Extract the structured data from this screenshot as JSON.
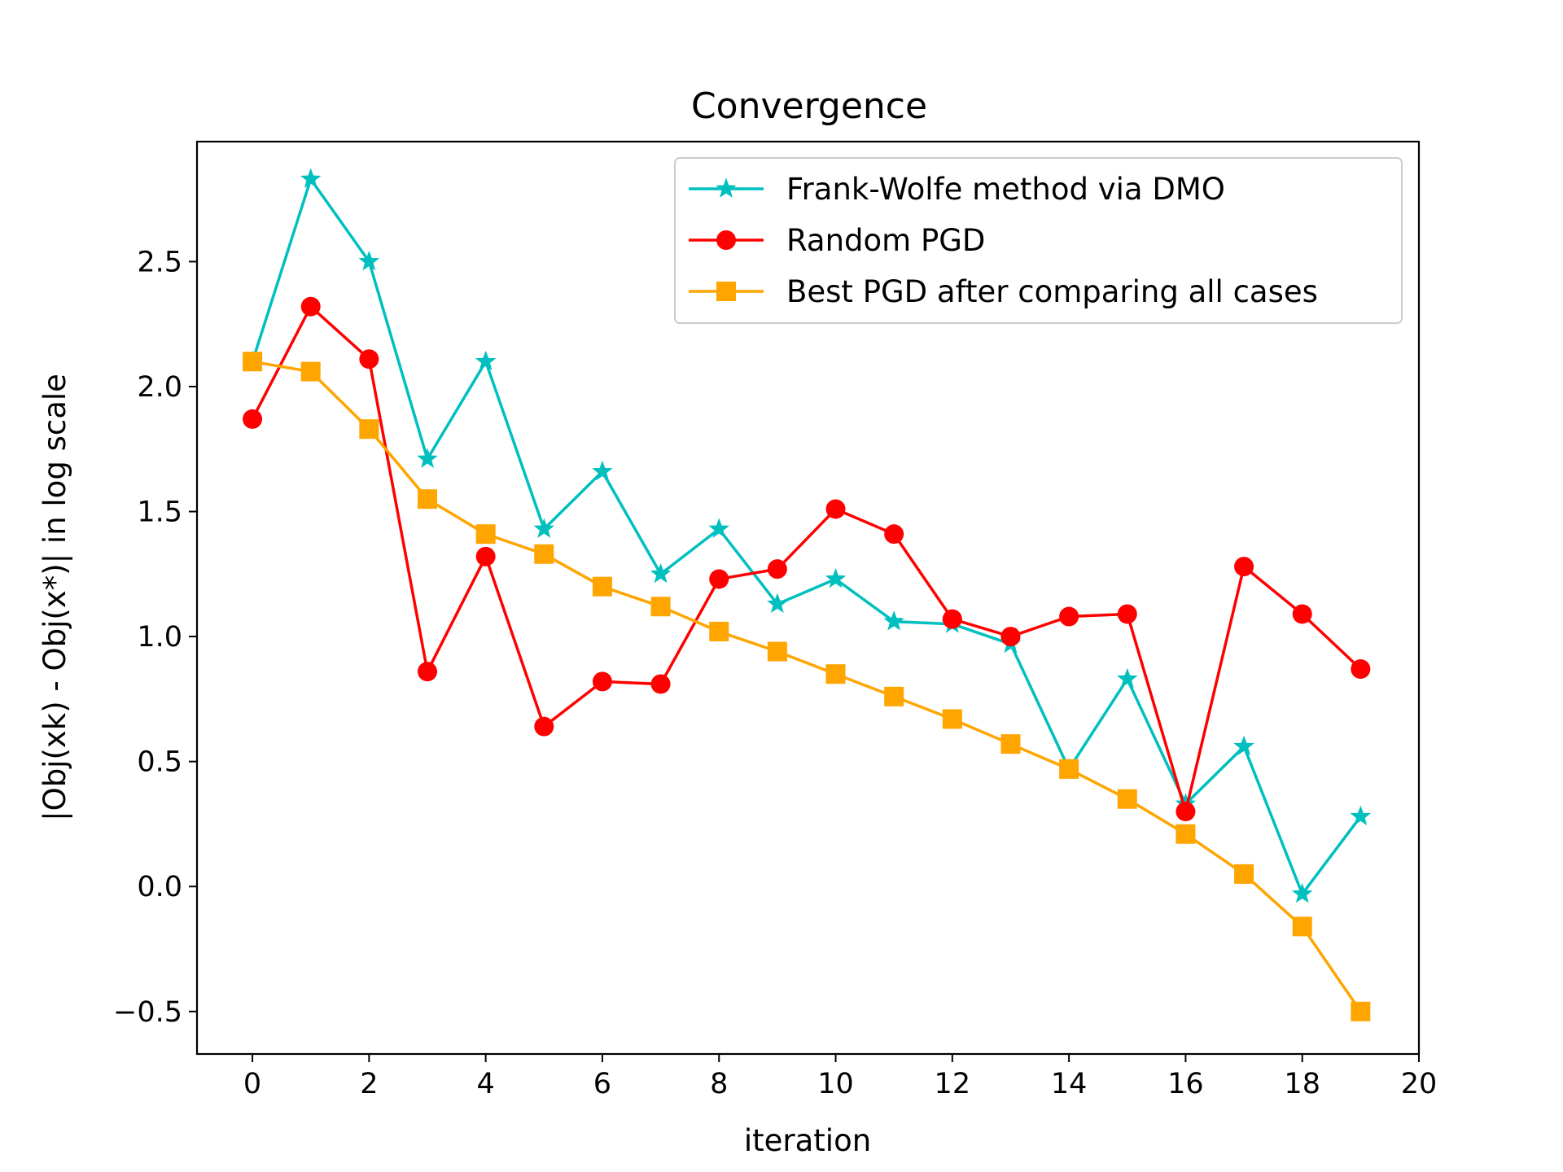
{
  "chart_data": {
    "type": "line",
    "title": "Convergence",
    "xlabel": "iteration",
    "ylabel": "|Obj(xk) - Obj(x*)| in log scale",
    "xlim": [
      -0.95,
      20
    ],
    "ylim": [
      -0.67,
      2.98
    ],
    "xticks": [
      0,
      2,
      4,
      6,
      8,
      10,
      12,
      14,
      16,
      18,
      20
    ],
    "xtick_labels": [
      "0",
      "2",
      "4",
      "6",
      "8",
      "10",
      "12",
      "14",
      "16",
      "18",
      "20"
    ],
    "yticks": [
      -0.5,
      0.0,
      0.5,
      1.0,
      1.5,
      2.0,
      2.5
    ],
    "ytick_labels": [
      "−0.5",
      "0.0",
      "0.5",
      "1.0",
      "1.5",
      "2.0",
      "2.5"
    ],
    "grid": false,
    "legend_position": "top-right",
    "x": [
      0,
      1,
      2,
      3,
      4,
      5,
      6,
      7,
      8,
      9,
      10,
      11,
      12,
      13,
      14,
      15,
      16,
      17,
      18,
      19
    ],
    "series": [
      {
        "name": "Frank-Wolfe method via DMO",
        "color": "#00bfbf",
        "marker": "star",
        "values": [
          2.1,
          2.83,
          2.5,
          1.71,
          2.1,
          1.43,
          1.66,
          1.25,
          1.43,
          1.13,
          1.23,
          1.06,
          1.05,
          0.97,
          0.47,
          0.83,
          0.33,
          0.56,
          -0.03,
          0.28
        ]
      },
      {
        "name": "Random PGD",
        "color": "#ff0000",
        "marker": "circle",
        "values": [
          1.87,
          2.32,
          2.11,
          0.86,
          1.32,
          0.64,
          0.82,
          0.81,
          1.23,
          1.27,
          1.51,
          1.41,
          1.07,
          1.0,
          1.08,
          1.09,
          0.3,
          1.28,
          1.09,
          0.87
        ]
      },
      {
        "name": "Best PGD after comparing all cases",
        "color": "#ffa500",
        "marker": "square",
        "values": [
          2.1,
          2.06,
          1.83,
          1.55,
          1.41,
          1.33,
          1.2,
          1.12,
          1.02,
          0.94,
          0.85,
          0.76,
          0.67,
          0.57,
          0.47,
          0.35,
          0.21,
          0.05,
          -0.16,
          -0.5
        ]
      }
    ]
  }
}
